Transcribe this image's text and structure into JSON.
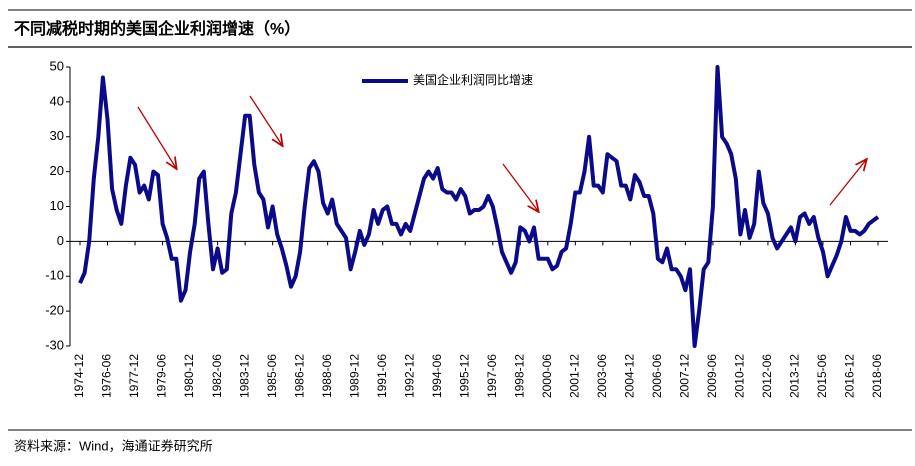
{
  "chart_data": {
    "type": "line",
    "title": "不同减税时期的美国企业利润增速（%）",
    "source": "资料来源：Wind，海通证券研究所",
    "categories": [
      "1974-12",
      null,
      null,
      null,
      null,
      null,
      "1976-06",
      null,
      null,
      null,
      null,
      null,
      "1977-12",
      null,
      null,
      null,
      null,
      null,
      "1979-06",
      null,
      null,
      null,
      null,
      null,
      "1980-12",
      null,
      null,
      null,
      null,
      null,
      "1982-06",
      null,
      null,
      null,
      null,
      null,
      "1983-12",
      null,
      null,
      null,
      null,
      null,
      "1985-06",
      null,
      null,
      null,
      null,
      null,
      "1986-12",
      null,
      null,
      null,
      null,
      null,
      "1988-06",
      null,
      null,
      null,
      null,
      null,
      "1989-12",
      null,
      null,
      null,
      null,
      null,
      "1991-06",
      null,
      null,
      null,
      null,
      null,
      "1992-12",
      null,
      null,
      null,
      null,
      null,
      "1994-06",
      null,
      null,
      null,
      null,
      null,
      "1995-12",
      null,
      null,
      null,
      null,
      null,
      "1997-06",
      null,
      null,
      null,
      null,
      null,
      "1998-12",
      null,
      null,
      null,
      null,
      null,
      "2000-06",
      null,
      null,
      null,
      null,
      null,
      "2001-12",
      null,
      null,
      null,
      null,
      null,
      "2003-06",
      null,
      null,
      null,
      null,
      null,
      "2004-12",
      null,
      null,
      null,
      null,
      null,
      "2006-06",
      null,
      null,
      null,
      null,
      null,
      "2007-12",
      null,
      null,
      null,
      null,
      null,
      "2009-06",
      null,
      null,
      null,
      null,
      null,
      "2010-12",
      null,
      null,
      null,
      null,
      null,
      "2012-06",
      null,
      null,
      null,
      null,
      null,
      "2013-12",
      null,
      null,
      null,
      null,
      null,
      "2015-06",
      null,
      null,
      null,
      null,
      null,
      "2016-12",
      null,
      null,
      null,
      null,
      null,
      "2018-06"
    ],
    "series": [
      {
        "name": "美国企业利润同比增速",
        "color": "#0b0b8a",
        "values": [
          -12,
          -9,
          0,
          18,
          30,
          47,
          35,
          15,
          9,
          5,
          16,
          24,
          22,
          14,
          16,
          12,
          20,
          19,
          5,
          1,
          -5,
          -5,
          -17,
          -14,
          -3,
          5,
          18,
          20,
          5,
          -8,
          -2,
          -9,
          -8,
          8,
          14,
          25,
          36,
          36,
          22,
          14,
          12,
          4,
          10,
          2,
          -2,
          -7,
          -13,
          -10,
          -3,
          10,
          21,
          23,
          20,
          11,
          8,
          12,
          5,
          3,
          1,
          -8,
          -3,
          3,
          -1,
          2,
          9,
          5,
          9,
          10,
          5,
          5,
          2,
          5,
          3,
          8,
          13,
          18,
          20,
          18,
          21,
          15,
          14,
          14,
          12,
          15,
          13,
          8,
          9,
          9,
          10,
          13,
          10,
          4,
          -3,
          -6,
          -9,
          -6,
          4,
          3,
          0,
          4,
          -5,
          -5,
          -5,
          -8,
          -7,
          -3,
          -2,
          5,
          14,
          14,
          20,
          30,
          16,
          16,
          14,
          25,
          24,
          23,
          16,
          16,
          12,
          19,
          17,
          13,
          13,
          8,
          -5,
          -6,
          -2,
          -8,
          -8,
          -10,
          -14,
          -8,
          -30,
          -20,
          -8,
          -6,
          10,
          50,
          30,
          28,
          25,
          18,
          2,
          9,
          1,
          5,
          20,
          11,
          8,
          1,
          -2,
          0,
          2,
          4,
          0,
          7,
          8,
          5,
          7,
          1,
          -3,
          -10,
          -7,
          -4,
          0,
          7,
          3,
          3,
          2,
          3,
          5,
          6,
          7
        ]
      }
    ],
    "ylim": [
      -30,
      50
    ],
    "yticks": [
      -30,
      -20,
      -10,
      0,
      10,
      20,
      30,
      40,
      50
    ],
    "legend": "top"
  }
}
